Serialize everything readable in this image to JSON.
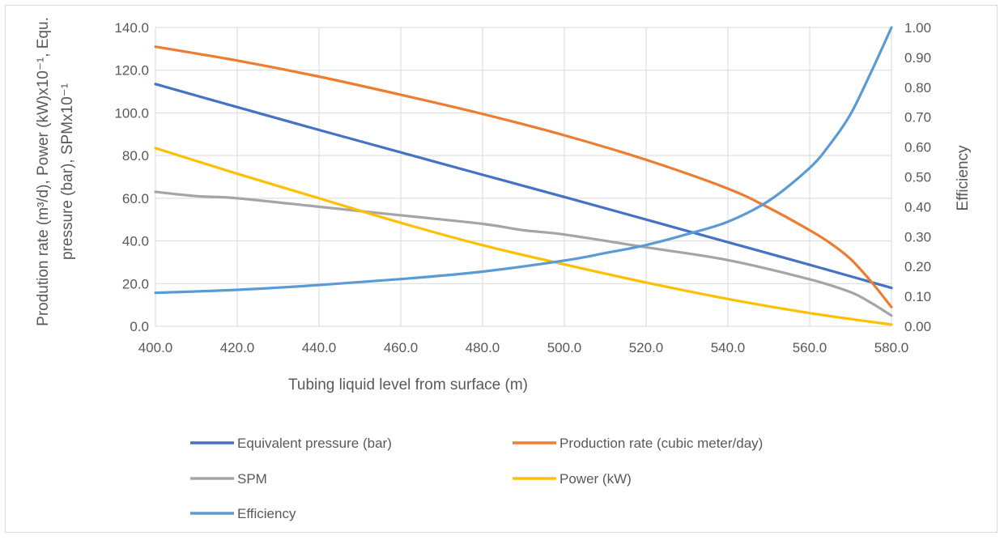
{
  "chart_data": {
    "type": "line",
    "xlabel": "Tubing liquid level from surface (m)",
    "ylabel_line1": "Prodution rate  (m³/d), Power (kW)x10⁻¹, Equ.",
    "ylabel_line2": "pressure (bar), SPMx10⁻¹",
    "y2label": "Efficiency",
    "x_ticks": [
      "400.0",
      "420.0",
      "440.0",
      "460.0",
      "480.0",
      "500.0",
      "520.0",
      "540.0",
      "560.0",
      "580.0"
    ],
    "y_ticks": [
      "0.0",
      "20.0",
      "40.0",
      "60.0",
      "80.0",
      "100.0",
      "120.0",
      "140.0"
    ],
    "y2_ticks": [
      "0.00",
      "0.10",
      "0.20",
      "0.30",
      "0.40",
      "0.50",
      "0.60",
      "0.70",
      "0.80",
      "0.90",
      "1.00"
    ],
    "xlim": [
      400,
      580
    ],
    "ylim": [
      0,
      140
    ],
    "y2lim": [
      0,
      1
    ],
    "grid": true,
    "legend_position": "bottom",
    "series": [
      {
        "name": "Equivalent pressure (bar)",
        "color": "#4472c4",
        "axis": "left",
        "x": [
          400,
          420,
          440,
          460,
          480,
          500,
          520,
          540,
          560,
          580
        ],
        "values": [
          113.5,
          102.7,
          92.0,
          81.5,
          71.0,
          60.6,
          50.0,
          39.4,
          28.8,
          18.0
        ]
      },
      {
        "name": "Production rate (cubic meter/day)",
        "color": "#ed7d31",
        "axis": "left",
        "x": [
          400,
          420,
          440,
          460,
          480,
          500,
          520,
          540,
          550,
          560,
          565,
          570,
          575,
          580
        ],
        "values": [
          131.0,
          124.5,
          117.0,
          108.5,
          99.5,
          89.5,
          78.0,
          64.5,
          55.5,
          45.0,
          39.0,
          31.5,
          21.0,
          9.0
        ]
      },
      {
        "name": "SPM",
        "color": "#a5a5a5",
        "axis": "left",
        "x": [
          400,
          410,
          420,
          440,
          460,
          480,
          490,
          500,
          520,
          540,
          560,
          570,
          575,
          580
        ],
        "values": [
          63.0,
          61.0,
          60.0,
          56.0,
          52.0,
          48.0,
          45.0,
          43.0,
          37.0,
          31.0,
          22.0,
          16.0,
          11.0,
          5.0
        ]
      },
      {
        "name": "Power (kW)",
        "color": "#ffc000",
        "axis": "left",
        "x": [
          400,
          420,
          440,
          460,
          480,
          500,
          520,
          540,
          560,
          580
        ],
        "values": [
          83.5,
          71.5,
          60.0,
          48.5,
          38.0,
          29.0,
          20.5,
          12.8,
          6.2,
          0.8
        ]
      },
      {
        "name": "Efficiency",
        "color": "#5b9bd5",
        "axis": "right",
        "x": [
          400,
          420,
          440,
          460,
          480,
          500,
          510,
          520,
          530,
          540,
          550,
          560,
          565,
          570,
          575,
          580
        ],
        "values": [
          0.112,
          0.122,
          0.138,
          0.158,
          0.183,
          0.22,
          0.245,
          0.272,
          0.308,
          0.35,
          0.42,
          0.53,
          0.61,
          0.71,
          0.85,
          1.0
        ]
      }
    ]
  }
}
